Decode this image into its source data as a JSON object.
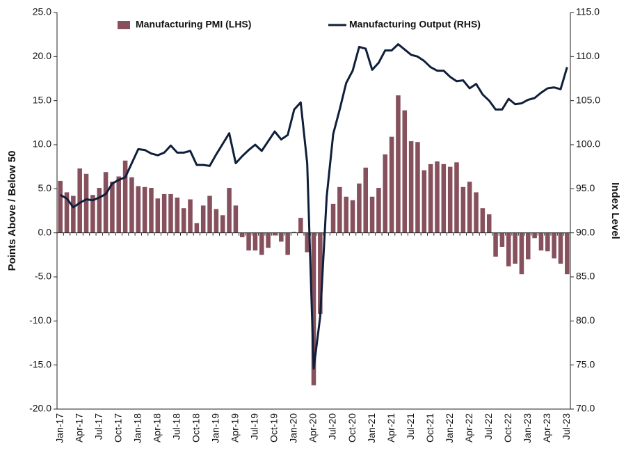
{
  "chart_data": {
    "type": "bar_line",
    "y_label": "Points Above / Below 50",
    "y2_label": "Index Level",
    "categories": [
      "Jan-17",
      null,
      null,
      "Apr-17",
      null,
      null,
      "Jul-17",
      null,
      null,
      "Oct-17",
      null,
      null,
      "Jan-18",
      null,
      null,
      "Apr-18",
      null,
      null,
      "Jul-18",
      null,
      null,
      "Oct-18",
      null,
      null,
      "Jan-19",
      null,
      null,
      "Apr-19",
      null,
      null,
      "Jul-19",
      null,
      null,
      "Oct-19",
      null,
      null,
      "Jan-20",
      null,
      null,
      "Apr-20",
      null,
      null,
      "Jul-20",
      null,
      null,
      "Oct-20",
      null,
      null,
      "Jan-21",
      null,
      null,
      "Apr-21",
      null,
      null,
      "Jul-21",
      null,
      null,
      "Oct-21",
      null,
      null,
      "Jan-22",
      null,
      null,
      "Apr-22",
      null,
      null,
      "Jul-22",
      null,
      null,
      "Oct-22",
      null,
      null,
      "Jan-23",
      null,
      null,
      "Apr-23",
      null,
      null,
      "Jul-23"
    ],
    "series": [
      {
        "name": "Manufacturing PMI (LHS)",
        "color": "#86505c",
        "axis": "y",
        "values": [
          5.9,
          4.6,
          4.2,
          7.3,
          6.7,
          4.3,
          5.1,
          6.9,
          5.8,
          6.4,
          8.2,
          6.3,
          5.3,
          5.2,
          5.1,
          3.9,
          4.4,
          4.4,
          4.0,
          2.8,
          3.8,
          1.1,
          3.1,
          4.2,
          2.7,
          2.0,
          5.1,
          3.1,
          -0.5,
          -2.0,
          -2.0,
          -2.5,
          -1.7,
          -0.3,
          -1.0,
          -2.5,
          0.1,
          1.7,
          -2.2,
          -17.3,
          -9.2,
          0.0,
          3.3,
          5.2,
          4.1,
          3.7,
          5.6,
          7.4,
          4.1,
          5.1,
          8.9,
          10.9,
          15.6,
          13.9,
          10.4,
          10.3,
          7.1,
          7.8,
          8.1,
          7.8,
          7.5,
          8.0,
          5.2,
          5.8,
          4.6,
          2.8,
          2.1,
          -2.7,
          -1.6,
          -3.8,
          -3.5,
          -4.7,
          -3.0,
          -0.6,
          -2.0,
          -2.1,
          -2.9,
          -3.5,
          -4.7
        ]
      },
      {
        "name": "Manufacturing Output (RHS)",
        "color": "#0f1e3a",
        "axis": "y2",
        "values": [
          94.3,
          93.9,
          92.9,
          93.4,
          93.8,
          93.7,
          94.0,
          94.4,
          95.6,
          96.0,
          96.3,
          97.9,
          99.5,
          99.4,
          99.0,
          98.8,
          99.1,
          99.9,
          99.1,
          99.1,
          99.3,
          97.7,
          97.7,
          97.6,
          98.9,
          100.1,
          101.3,
          97.9,
          98.7,
          99.4,
          100.0,
          99.3,
          100.4,
          101.5,
          100.6,
          101.1,
          104.0,
          104.8,
          97.9,
          74.6,
          80.5,
          94.1,
          101.2,
          104.0,
          107.0,
          108.4,
          111.1,
          110.9,
          108.5,
          109.3,
          110.7,
          110.7,
          111.4,
          110.8,
          110.2,
          110.0,
          109.5,
          108.8,
          108.4,
          108.4,
          107.7,
          107.2,
          107.3,
          106.4,
          106.9,
          105.7,
          105.0,
          104.0,
          104.0,
          105.2,
          104.6,
          104.7,
          105.1,
          105.3,
          105.9,
          106.4,
          106.5,
          106.3,
          108.8
        ]
      }
    ],
    "ylim": [
      -20,
      25
    ],
    "yticks": [
      {
        "value": -20,
        "label": "-20.0"
      },
      {
        "value": -15,
        "label": "-15.0"
      },
      {
        "value": -10,
        "label": "-10.0"
      },
      {
        "value": -5,
        "label": "-5.0"
      },
      {
        "value": 0,
        "label": "0.0"
      },
      {
        "value": 5,
        "label": "5.0"
      },
      {
        "value": 10,
        "label": "10.0"
      },
      {
        "value": 15,
        "label": "15.0"
      },
      {
        "value": 20,
        "label": "20.0"
      },
      {
        "value": 25,
        "label": "25.0"
      }
    ],
    "y2lim": [
      70,
      115
    ],
    "y2ticks": [
      {
        "value": 70,
        "label": "70.0"
      },
      {
        "value": 75,
        "label": "75.0"
      },
      {
        "value": 80,
        "label": "80.0"
      },
      {
        "value": 85,
        "label": "85.0"
      },
      {
        "value": 90,
        "label": "90.0"
      },
      {
        "value": 95,
        "label": "95.0"
      },
      {
        "value": 100,
        "label": "100.0"
      },
      {
        "value": 105,
        "label": "105.0"
      },
      {
        "value": 110,
        "label": "110.0"
      },
      {
        "value": 115,
        "label": "115.0"
      }
    ],
    "legend": "top"
  }
}
